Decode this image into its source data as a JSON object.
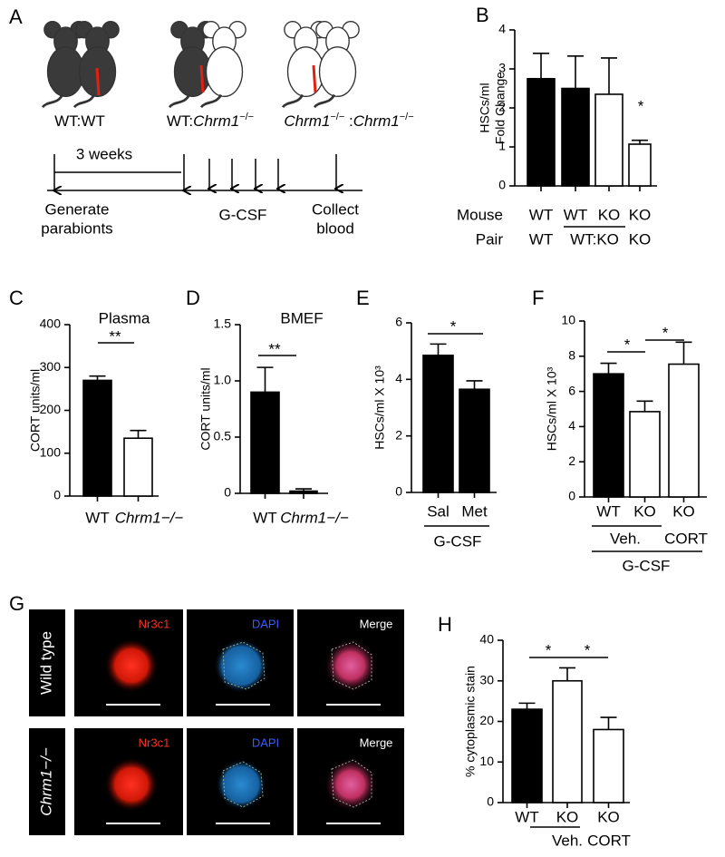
{
  "diagram": {
    "panel": "A",
    "pair_labels": [
      [
        {
          "text": "WT:WT"
        }
      ],
      [
        {
          "text": "WT:"
        },
        {
          "text": "Chrm1",
          "italic": true
        },
        {
          "text": "−/−",
          "sup": true
        }
      ],
      [
        {
          "text": "Chrm1",
          "italic": true
        },
        {
          "text": "−/−",
          "sup": true
        },
        {
          "text": " :"
        },
        {
          "text": "Chrm1",
          "italic": true
        },
        {
          "text": "−/−",
          "sup": true
        }
      ]
    ],
    "duration": "3 weeks",
    "steps": [
      [
        "Generate",
        "parabionts"
      ],
      [
        "G-CSF"
      ],
      [
        "Collect",
        "blood"
      ]
    ]
  },
  "images": {
    "panel": "G",
    "rows": [
      "Wild type",
      "Chrm1−/−"
    ],
    "italic_rows": [
      false,
      true
    ],
    "columns": [
      "Nr3c1",
      "DAPI",
      "Merge"
    ]
  },
  "chart_data": [
    {
      "type": "bar",
      "panel": "B",
      "ylabel": [
        "HSCs/ml",
        "Fold Change"
      ],
      "categories": [
        "WT",
        "WT",
        "KO",
        "KO"
      ],
      "values": [
        2.75,
        2.5,
        2.35,
        1.07
      ],
      "errors": [
        0.65,
        0.83,
        0.93,
        0.1
      ],
      "colors": [
        "#000000",
        "#000000",
        "#ffffff",
        "#ffffff"
      ],
      "ylim": [
        0,
        4
      ],
      "yticks": [
        0,
        1,
        2,
        3,
        4
      ],
      "annotations": [
        "*"
      ],
      "row_labels": [
        "Mouse",
        "Pair"
      ],
      "groups": [
        "WT",
        "WT:KO",
        "KO"
      ]
    },
    {
      "type": "bar",
      "panel": "C",
      "title": "Plasma",
      "ylabel": [
        "CORT units/ml"
      ],
      "categories": [
        "WT",
        "Chrm1−/−"
      ],
      "italic_categories": [
        false,
        true
      ],
      "values": [
        270,
        135
      ],
      "errors": [
        10,
        18
      ],
      "colors": [
        "#000000",
        "#ffffff"
      ],
      "ylim": [
        0,
        400
      ],
      "yticks": [
        0,
        100,
        200,
        300,
        400
      ],
      "annotations": [
        "**"
      ]
    },
    {
      "type": "bar",
      "panel": "D",
      "title": "BMEF",
      "ylabel": [
        "CORT units/ml"
      ],
      "categories": [
        "WT",
        "Chrm1−/−"
      ],
      "italic_categories": [
        false,
        true
      ],
      "values": [
        0.9,
        0.02
      ],
      "errors": [
        0.22,
        0.02
      ],
      "colors": [
        "#000000",
        "#000000"
      ],
      "ylim": [
        0,
        1.5
      ],
      "yticks": [
        0,
        0.5,
        {
          "value": 1,
          "label": "1.0"
        },
        1.5
      ],
      "annotations": [
        "**"
      ]
    },
    {
      "type": "bar",
      "panel": "E",
      "ylabel": [
        "HSCs/ml X 10³"
      ],
      "categories": [
        "Sal",
        "Met"
      ],
      "values": [
        4.85,
        3.65
      ],
      "errors": [
        0.4,
        0.3
      ],
      "colors": [
        "#000000",
        "#000000"
      ],
      "ylim": [
        0,
        6
      ],
      "yticks": [
        0,
        2,
        4,
        6
      ],
      "annotations": [
        "*"
      ],
      "groups": [
        "G-CSF"
      ]
    },
    {
      "type": "bar",
      "panel": "F",
      "ylabel": [
        "HSCs/ml X 10³"
      ],
      "categories": [
        "WT",
        "KO",
        "KO"
      ],
      "values": [
        7.0,
        4.85,
        7.55
      ],
      "errors": [
        0.6,
        0.6,
        1.25
      ],
      "colors": [
        "#000000",
        "#ffffff",
        "#ffffff"
      ],
      "ylim": [
        0,
        10
      ],
      "yticks": [
        0,
        2,
        4,
        6,
        8,
        10
      ],
      "annotations": [
        "*",
        "*"
      ],
      "groups": [
        "Veh.",
        "CORT",
        "G-CSF"
      ]
    },
    {
      "type": "bar",
      "panel": "H",
      "ylabel": [
        "% cytoplasmic stain"
      ],
      "categories": [
        "WT",
        "KO",
        "KO"
      ],
      "values": [
        23,
        30,
        18
      ],
      "errors": [
        1.5,
        3.2,
        3
      ],
      "colors": [
        "#000000",
        "#ffffff",
        "#ffffff"
      ],
      "ylim": [
        0,
        40
      ],
      "yticks": [
        0,
        10,
        20,
        30,
        40
      ],
      "annotations": [
        "*",
        "*"
      ],
      "groups": [
        "Veh.",
        "CORT"
      ]
    }
  ]
}
